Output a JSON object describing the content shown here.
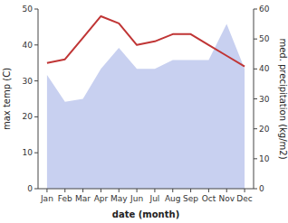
{
  "chart_data": {
    "type": "line",
    "categories": [
      "Jan",
      "Feb",
      "Mar",
      "Apr",
      "May",
      "Jun",
      "Jul",
      "Aug",
      "Sep",
      "Oct",
      "Nov",
      "Dec"
    ],
    "series": [
      {
        "type": "area",
        "axis": "y2",
        "color": "#c8d0f0",
        "values": [
          38,
          29,
          30,
          40,
          47,
          40,
          40,
          43,
          43,
          43,
          55,
          40
        ]
      },
      {
        "type": "line",
        "color": "#c03535",
        "values": [
          35,
          36,
          42,
          48,
          46,
          40,
          41,
          43,
          43,
          40,
          37,
          34
        ]
      }
    ],
    "xlabel": "date (month)",
    "ylabel": "max temp (C)",
    "y2label": "med. precipitation (kg/m2)",
    "ylim": [
      0,
      50
    ],
    "yticks": [
      0,
      10,
      20,
      30,
      40,
      50
    ],
    "y2lim": [
      0,
      60
    ],
    "y2ticks": [
      0,
      10,
      20,
      30,
      40,
      50,
      60
    ],
    "grid": false
  }
}
